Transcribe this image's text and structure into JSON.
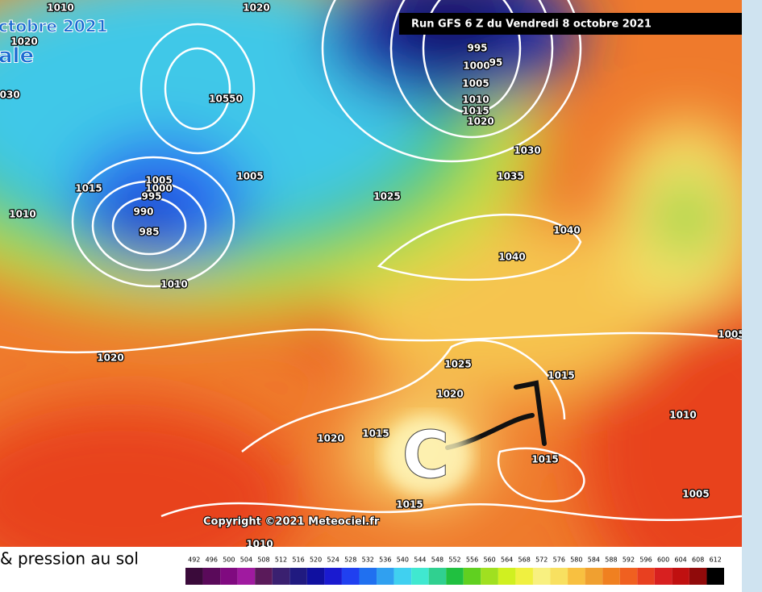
{
  "header": {
    "run_title": "Run GFS 6 Z du Vendredi 8 octobre 2021",
    "corner_date": "ctobre 2021",
    "corner_sub": "ale"
  },
  "isobar_labels": [
    "1010",
    "1020",
    "1020",
    "1030",
    "10550",
    "995",
    "1000",
    "95",
    "1005",
    "1010",
    "1015",
    "1020",
    "1030",
    "1035",
    "1040",
    "1040",
    "1025",
    "1005",
    "1015",
    "1005",
    "1000",
    "995",
    "990",
    "985",
    "1010",
    "1010",
    "1020",
    "1025",
    "1020",
    "1015",
    "1010",
    "1015",
    "1020",
    "1015",
    "1005",
    "1015",
    "1010",
    "1005"
  ],
  "annotation": "C",
  "copyright": "Copyright ©2021 Meteociel.fr",
  "footer": {
    "caption": "& pression au sol",
    "scale_labels": [
      "492",
      "496",
      "500",
      "504",
      "508",
      "512",
      "516",
      "520",
      "524",
      "528",
      "532",
      "536",
      "540",
      "544",
      "548",
      "552",
      "556",
      "560",
      "564",
      "568",
      "572",
      "576",
      "580",
      "584",
      "588",
      "592",
      "596",
      "600",
      "604",
      "608",
      "612"
    ]
  }
}
